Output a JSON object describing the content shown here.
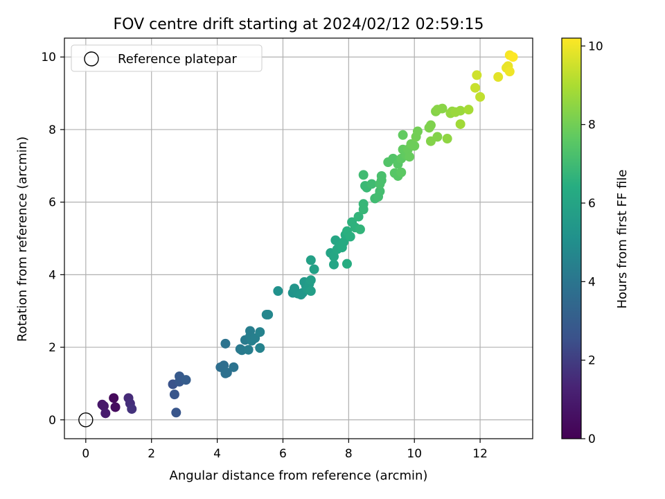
{
  "chart_data": {
    "type": "scatter",
    "title": "FOV centre drift starting at 2024/02/12 02:59:15",
    "xlabel": "Angular distance from reference (arcmin)",
    "ylabel": "Rotation from reference (arcmin)",
    "xlim": [
      -0.65,
      13.6
    ],
    "ylim": [
      -0.52,
      10.52
    ],
    "xticks": [
      0,
      2,
      4,
      6,
      8,
      10,
      12
    ],
    "yticks": [
      0,
      2,
      4,
      6,
      8,
      10
    ],
    "grid": true,
    "legend": {
      "placement": "top-left",
      "entries": [
        "Reference platepar"
      ]
    },
    "reference_point": {
      "x": 0,
      "y": 0
    },
    "colorbar": {
      "label": "Hours from first FF file",
      "colormap": "viridis",
      "range": [
        0,
        10.2
      ],
      "ticks": [
        0,
        2,
        4,
        6,
        8,
        10
      ]
    },
    "series": [
      {
        "points": [
          {
            "x": 0.5,
            "y": 0.42,
            "c": 0.8
          },
          {
            "x": 0.55,
            "y": 0.38,
            "c": 0.9
          },
          {
            "x": 0.6,
            "y": 0.18,
            "c": 1.0
          },
          {
            "x": 0.85,
            "y": 0.6,
            "c": 0.3
          },
          {
            "x": 0.9,
            "y": 0.35,
            "c": 0.4
          },
          {
            "x": 1.3,
            "y": 0.6,
            "c": 1.5
          },
          {
            "x": 1.35,
            "y": 0.45,
            "c": 1.6
          },
          {
            "x": 1.4,
            "y": 0.3,
            "c": 1.7
          },
          {
            "x": 2.65,
            "y": 0.98,
            "c": 2.6
          },
          {
            "x": 2.7,
            "y": 0.7,
            "c": 2.7
          },
          {
            "x": 2.75,
            "y": 0.2,
            "c": 2.7
          },
          {
            "x": 2.85,
            "y": 1.05,
            "c": 2.8
          },
          {
            "x": 2.85,
            "y": 1.2,
            "c": 2.9
          },
          {
            "x": 3.05,
            "y": 1.1,
            "c": 3.0
          },
          {
            "x": 4.1,
            "y": 1.45,
            "c": 3.7
          },
          {
            "x": 4.2,
            "y": 1.5,
            "c": 3.7
          },
          {
            "x": 4.25,
            "y": 1.28,
            "c": 3.8
          },
          {
            "x": 4.3,
            "y": 1.3,
            "c": 3.8
          },
          {
            "x": 4.25,
            "y": 2.1,
            "c": 3.9
          },
          {
            "x": 4.5,
            "y": 1.45,
            "c": 3.9
          },
          {
            "x": 4.7,
            "y": 1.95,
            "c": 4.1
          },
          {
            "x": 4.75,
            "y": 1.92,
            "c": 4.2
          },
          {
            "x": 4.85,
            "y": 2.2,
            "c": 4.2
          },
          {
            "x": 5.0,
            "y": 2.3,
            "c": 4.3
          },
          {
            "x": 5.0,
            "y": 2.45,
            "c": 4.3
          },
          {
            "x": 5.05,
            "y": 2.18,
            "c": 4.4
          },
          {
            "x": 5.15,
            "y": 2.25,
            "c": 4.4
          },
          {
            "x": 5.3,
            "y": 1.98,
            "c": 4.5
          },
          {
            "x": 5.3,
            "y": 2.42,
            "c": 4.5
          },
          {
            "x": 4.95,
            "y": 1.93,
            "c": 4.3
          },
          {
            "x": 5.5,
            "y": 2.9,
            "c": 4.7
          },
          {
            "x": 5.55,
            "y": 2.9,
            "c": 4.7
          },
          {
            "x": 5.85,
            "y": 3.55,
            "c": 5.1
          },
          {
            "x": 6.3,
            "y": 3.5,
            "c": 5.2
          },
          {
            "x": 6.35,
            "y": 3.62,
            "c": 5.3
          },
          {
            "x": 6.45,
            "y": 3.48,
            "c": 5.3
          },
          {
            "x": 6.55,
            "y": 3.45,
            "c": 5.4
          },
          {
            "x": 6.6,
            "y": 3.5,
            "c": 5.4
          },
          {
            "x": 6.65,
            "y": 3.8,
            "c": 5.5
          },
          {
            "x": 6.7,
            "y": 3.7,
            "c": 5.5
          },
          {
            "x": 6.75,
            "y": 3.6,
            "c": 5.6
          },
          {
            "x": 6.8,
            "y": 3.75,
            "c": 5.6
          },
          {
            "x": 6.85,
            "y": 3.55,
            "c": 5.7
          },
          {
            "x": 6.85,
            "y": 3.85,
            "c": 5.7
          },
          {
            "x": 6.85,
            "y": 4.4,
            "c": 5.8
          },
          {
            "x": 6.95,
            "y": 4.15,
            "c": 5.8
          },
          {
            "x": 7.45,
            "y": 4.6,
            "c": 6.0
          },
          {
            "x": 7.55,
            "y": 4.28,
            "c": 6.0
          },
          {
            "x": 7.55,
            "y": 4.5,
            "c": 6.1
          },
          {
            "x": 7.6,
            "y": 4.95,
            "c": 6.1
          },
          {
            "x": 7.65,
            "y": 4.7,
            "c": 6.2
          },
          {
            "x": 7.75,
            "y": 4.8,
            "c": 6.2
          },
          {
            "x": 7.8,
            "y": 4.75,
            "c": 6.3
          },
          {
            "x": 7.85,
            "y": 4.9,
            "c": 6.3
          },
          {
            "x": 7.9,
            "y": 5.1,
            "c": 6.4
          },
          {
            "x": 7.95,
            "y": 4.3,
            "c": 6.4
          },
          {
            "x": 7.95,
            "y": 5.2,
            "c": 6.5
          },
          {
            "x": 8.05,
            "y": 5.05,
            "c": 6.5
          },
          {
            "x": 8.1,
            "y": 5.45,
            "c": 6.6
          },
          {
            "x": 8.2,
            "y": 5.3,
            "c": 6.6
          },
          {
            "x": 8.3,
            "y": 5.6,
            "c": 6.7
          },
          {
            "x": 8.35,
            "y": 5.25,
            "c": 6.7
          },
          {
            "x": 8.45,
            "y": 5.8,
            "c": 6.8
          },
          {
            "x": 8.45,
            "y": 5.95,
            "c": 6.8
          },
          {
            "x": 8.45,
            "y": 6.75,
            "c": 7.0
          },
          {
            "x": 8.5,
            "y": 6.45,
            "c": 6.9
          },
          {
            "x": 8.55,
            "y": 6.4,
            "c": 6.9
          },
          {
            "x": 8.7,
            "y": 6.5,
            "c": 7.0
          },
          {
            "x": 8.8,
            "y": 6.1,
            "c": 7.0
          },
          {
            "x": 8.9,
            "y": 6.15,
            "c": 7.1
          },
          {
            "x": 8.95,
            "y": 6.3,
            "c": 7.1
          },
          {
            "x": 8.95,
            "y": 6.5,
            "c": 7.2
          },
          {
            "x": 9.0,
            "y": 6.6,
            "c": 7.2
          },
          {
            "x": 9.0,
            "y": 6.72,
            "c": 7.2
          },
          {
            "x": 9.2,
            "y": 7.1,
            "c": 7.4
          },
          {
            "x": 9.35,
            "y": 7.2,
            "c": 7.4
          },
          {
            "x": 9.4,
            "y": 6.8,
            "c": 7.5
          },
          {
            "x": 9.5,
            "y": 7.05,
            "c": 7.5
          },
          {
            "x": 9.5,
            "y": 6.72,
            "c": 7.5
          },
          {
            "x": 9.6,
            "y": 6.82,
            "c": 7.6
          },
          {
            "x": 9.6,
            "y": 7.2,
            "c": 7.6
          },
          {
            "x": 9.65,
            "y": 7.45,
            "c": 7.7
          },
          {
            "x": 9.65,
            "y": 7.85,
            "c": 7.7
          },
          {
            "x": 9.75,
            "y": 7.3,
            "c": 7.7
          },
          {
            "x": 9.8,
            "y": 7.45,
            "c": 7.8
          },
          {
            "x": 9.85,
            "y": 7.25,
            "c": 7.8
          },
          {
            "x": 9.9,
            "y": 7.6,
            "c": 7.9
          },
          {
            "x": 10.0,
            "y": 7.55,
            "c": 7.9
          },
          {
            "x": 10.05,
            "y": 7.8,
            "c": 8.0
          },
          {
            "x": 10.1,
            "y": 7.95,
            "c": 8.0
          },
          {
            "x": 10.45,
            "y": 8.05,
            "c": 8.2
          },
          {
            "x": 10.5,
            "y": 8.12,
            "c": 8.2
          },
          {
            "x": 10.5,
            "y": 7.68,
            "c": 8.3
          },
          {
            "x": 10.65,
            "y": 8.5,
            "c": 8.3
          },
          {
            "x": 10.7,
            "y": 7.8,
            "c": 8.3
          },
          {
            "x": 10.7,
            "y": 8.55,
            "c": 8.4
          },
          {
            "x": 10.85,
            "y": 8.58,
            "c": 8.4
          },
          {
            "x": 11.0,
            "y": 7.75,
            "c": 8.5
          },
          {
            "x": 11.1,
            "y": 8.45,
            "c": 8.6
          },
          {
            "x": 11.15,
            "y": 8.5,
            "c": 8.6
          },
          {
            "x": 11.25,
            "y": 8.48,
            "c": 8.7
          },
          {
            "x": 11.4,
            "y": 8.52,
            "c": 8.7
          },
          {
            "x": 11.4,
            "y": 8.15,
            "c": 8.8
          },
          {
            "x": 11.65,
            "y": 8.55,
            "c": 8.9
          },
          {
            "x": 11.85,
            "y": 9.15,
            "c": 9.4
          },
          {
            "x": 11.9,
            "y": 9.5,
            "c": 9.5
          },
          {
            "x": 12.0,
            "y": 8.9,
            "c": 9.3
          },
          {
            "x": 12.55,
            "y": 9.45,
            "c": 9.8
          },
          {
            "x": 12.8,
            "y": 9.7,
            "c": 9.9
          },
          {
            "x": 12.85,
            "y": 9.75,
            "c": 9.9
          },
          {
            "x": 12.9,
            "y": 9.6,
            "c": 10.0
          },
          {
            "x": 12.9,
            "y": 10.05,
            "c": 10.1
          },
          {
            "x": 13.0,
            "y": 10.0,
            "c": 10.2
          }
        ]
      }
    ]
  }
}
